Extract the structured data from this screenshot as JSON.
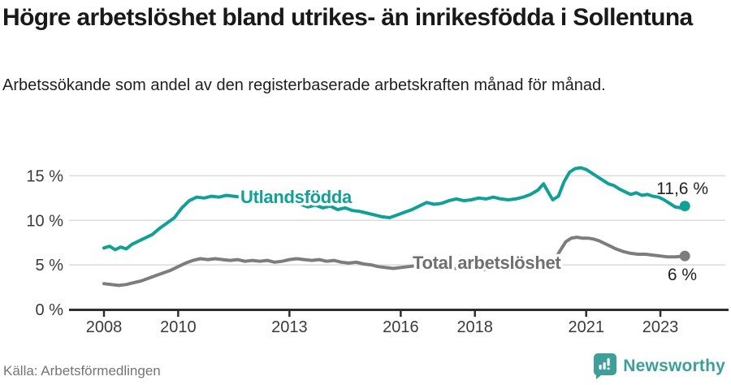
{
  "header": {
    "title": "Högre arbetslöshet bland utrikes- än inrikesfödda i Sollentuna",
    "subtitle": "Arbetssökande som andel av den registerbaserade arbetskraften månad för månad."
  },
  "footer": {
    "source": "Källa: Arbetsförmedlingen",
    "brand_name": "Newsworthy"
  },
  "colors": {
    "teal_line": "#10A096",
    "gray_line": "#7D7D7D",
    "gray_label": "#6F6F6F",
    "logo_teal": "#3E9E99",
    "axis": "#2E2E2E",
    "axis_text": "#3A3A3A",
    "grid": "#DCDCDC",
    "end_label_text": "#222222"
  },
  "chart_data": {
    "type": "line",
    "title": "Högre arbetslöshet bland utrikes- än inrikesfödda i Sollentuna",
    "subtitle": "Arbetssökande som andel av den registerbaserade arbetskraften månad för månad.",
    "xlabel": "",
    "ylabel": "",
    "grid": true,
    "x_axis": {
      "ticks": [
        2008,
        2010,
        2013,
        2016,
        2018,
        2021,
        2023
      ],
      "range": [
        2008,
        2023.67
      ]
    },
    "y_axis": {
      "ticks": [
        0,
        5,
        10,
        15
      ],
      "tick_suffix": " %",
      "range": [
        0,
        16.5
      ]
    },
    "series": [
      {
        "name": "Utlandsfödda",
        "color": "#10A096",
        "end_label": "11,6 %",
        "end_value": 11.6,
        "points": [
          [
            2008.0,
            6.9
          ],
          [
            2008.15,
            7.1
          ],
          [
            2008.3,
            6.7
          ],
          [
            2008.45,
            7.0
          ],
          [
            2008.6,
            6.8
          ],
          [
            2008.75,
            7.3
          ],
          [
            2008.9,
            7.6
          ],
          [
            2009.1,
            8.0
          ],
          [
            2009.3,
            8.4
          ],
          [
            2009.5,
            9.1
          ],
          [
            2009.7,
            9.7
          ],
          [
            2009.9,
            10.3
          ],
          [
            2010.1,
            11.4
          ],
          [
            2010.3,
            12.2
          ],
          [
            2010.5,
            12.6
          ],
          [
            2010.7,
            12.5
          ],
          [
            2010.9,
            12.7
          ],
          [
            2011.1,
            12.6
          ],
          [
            2011.3,
            12.8
          ],
          [
            2011.5,
            12.7
          ],
          [
            2011.7,
            12.6
          ],
          [
            2011.9,
            12.8
          ],
          [
            2012.1,
            12.7
          ],
          [
            2012.3,
            12.5
          ],
          [
            2012.5,
            12.6
          ],
          [
            2012.7,
            12.4
          ],
          [
            2012.9,
            12.3
          ],
          [
            2013.1,
            12.1
          ],
          [
            2013.3,
            11.8
          ],
          [
            2013.5,
            11.5
          ],
          [
            2013.7,
            11.7
          ],
          [
            2013.9,
            11.4
          ],
          [
            2014.1,
            11.6
          ],
          [
            2014.3,
            11.2
          ],
          [
            2014.5,
            11.4
          ],
          [
            2014.7,
            11.1
          ],
          [
            2014.9,
            11.0
          ],
          [
            2015.1,
            10.8
          ],
          [
            2015.3,
            10.6
          ],
          [
            2015.5,
            10.4
          ],
          [
            2015.7,
            10.3
          ],
          [
            2015.9,
            10.6
          ],
          [
            2016.1,
            10.9
          ],
          [
            2016.3,
            11.2
          ],
          [
            2016.5,
            11.6
          ],
          [
            2016.7,
            12.0
          ],
          [
            2016.9,
            11.8
          ],
          [
            2017.1,
            11.9
          ],
          [
            2017.3,
            12.2
          ],
          [
            2017.5,
            12.4
          ],
          [
            2017.7,
            12.2
          ],
          [
            2017.9,
            12.3
          ],
          [
            2018.1,
            12.5
          ],
          [
            2018.3,
            12.4
          ],
          [
            2018.5,
            12.6
          ],
          [
            2018.7,
            12.4
          ],
          [
            2018.9,
            12.3
          ],
          [
            2019.1,
            12.4
          ],
          [
            2019.3,
            12.6
          ],
          [
            2019.5,
            12.9
          ],
          [
            2019.7,
            13.4
          ],
          [
            2019.85,
            14.1
          ],
          [
            2020.0,
            13.0
          ],
          [
            2020.1,
            12.3
          ],
          [
            2020.25,
            12.7
          ],
          [
            2020.4,
            14.3
          ],
          [
            2020.55,
            15.4
          ],
          [
            2020.7,
            15.8
          ],
          [
            2020.85,
            15.9
          ],
          [
            2021.0,
            15.7
          ],
          [
            2021.15,
            15.3
          ],
          [
            2021.3,
            14.9
          ],
          [
            2021.45,
            14.5
          ],
          [
            2021.6,
            14.1
          ],
          [
            2021.75,
            13.9
          ],
          [
            2021.9,
            13.5
          ],
          [
            2022.05,
            13.2
          ],
          [
            2022.2,
            12.9
          ],
          [
            2022.35,
            13.1
          ],
          [
            2022.5,
            12.8
          ],
          [
            2022.65,
            12.9
          ],
          [
            2022.8,
            12.7
          ],
          [
            2022.95,
            12.6
          ],
          [
            2023.1,
            12.3
          ],
          [
            2023.25,
            11.9
          ],
          [
            2023.4,
            11.5
          ],
          [
            2023.55,
            11.4
          ],
          [
            2023.66,
            11.6
          ]
        ]
      },
      {
        "name": "Total arbetslöshet",
        "color": "#7D7D7D",
        "end_label": "6 %",
        "end_value": 6.0,
        "points": [
          [
            2008.0,
            2.9
          ],
          [
            2008.2,
            2.8
          ],
          [
            2008.4,
            2.7
          ],
          [
            2008.6,
            2.8
          ],
          [
            2008.8,
            3.0
          ],
          [
            2009.0,
            3.2
          ],
          [
            2009.2,
            3.5
          ],
          [
            2009.4,
            3.8
          ],
          [
            2009.6,
            4.1
          ],
          [
            2009.8,
            4.4
          ],
          [
            2010.0,
            4.8
          ],
          [
            2010.2,
            5.2
          ],
          [
            2010.4,
            5.5
          ],
          [
            2010.6,
            5.7
          ],
          [
            2010.8,
            5.6
          ],
          [
            2011.0,
            5.7
          ],
          [
            2011.2,
            5.6
          ],
          [
            2011.4,
            5.5
          ],
          [
            2011.6,
            5.6
          ],
          [
            2011.8,
            5.4
          ],
          [
            2012.0,
            5.5
          ],
          [
            2012.2,
            5.4
          ],
          [
            2012.4,
            5.5
          ],
          [
            2012.6,
            5.3
          ],
          [
            2012.8,
            5.4
          ],
          [
            2013.0,
            5.6
          ],
          [
            2013.2,
            5.7
          ],
          [
            2013.4,
            5.6
          ],
          [
            2013.6,
            5.5
          ],
          [
            2013.8,
            5.6
          ],
          [
            2014.0,
            5.4
          ],
          [
            2014.2,
            5.5
          ],
          [
            2014.4,
            5.3
          ],
          [
            2014.6,
            5.2
          ],
          [
            2014.8,
            5.3
          ],
          [
            2015.0,
            5.1
          ],
          [
            2015.2,
            5.0
          ],
          [
            2015.4,
            4.8
          ],
          [
            2015.6,
            4.7
          ],
          [
            2015.8,
            4.6
          ],
          [
            2016.0,
            4.7
          ],
          [
            2016.2,
            4.8
          ],
          [
            2016.4,
            4.9
          ],
          [
            2016.6,
            4.8
          ],
          [
            2016.8,
            4.7
          ],
          [
            2017.0,
            4.8
          ],
          [
            2017.25,
            4.7
          ],
          [
            2017.5,
            4.6
          ],
          [
            2017.75,
            4.7
          ],
          [
            2018.0,
            4.6
          ],
          [
            2018.25,
            4.5
          ],
          [
            2018.5,
            4.6
          ],
          [
            2018.75,
            4.5
          ],
          [
            2019.0,
            4.6
          ],
          [
            2019.25,
            4.7
          ],
          [
            2019.5,
            4.8
          ],
          [
            2019.75,
            5.0
          ],
          [
            2020.0,
            5.2
          ],
          [
            2020.15,
            5.6
          ],
          [
            2020.3,
            6.6
          ],
          [
            2020.45,
            7.6
          ],
          [
            2020.6,
            8.0
          ],
          [
            2020.75,
            8.1
          ],
          [
            2020.9,
            8.0
          ],
          [
            2021.05,
            8.0
          ],
          [
            2021.2,
            7.9
          ],
          [
            2021.35,
            7.7
          ],
          [
            2021.5,
            7.4
          ],
          [
            2021.65,
            7.1
          ],
          [
            2021.8,
            6.8
          ],
          [
            2022.0,
            6.5
          ],
          [
            2022.2,
            6.3
          ],
          [
            2022.4,
            6.2
          ],
          [
            2022.6,
            6.2
          ],
          [
            2022.8,
            6.1
          ],
          [
            2023.0,
            6.0
          ],
          [
            2023.2,
            5.9
          ],
          [
            2023.4,
            5.9
          ],
          [
            2023.66,
            6.0
          ]
        ]
      }
    ]
  }
}
